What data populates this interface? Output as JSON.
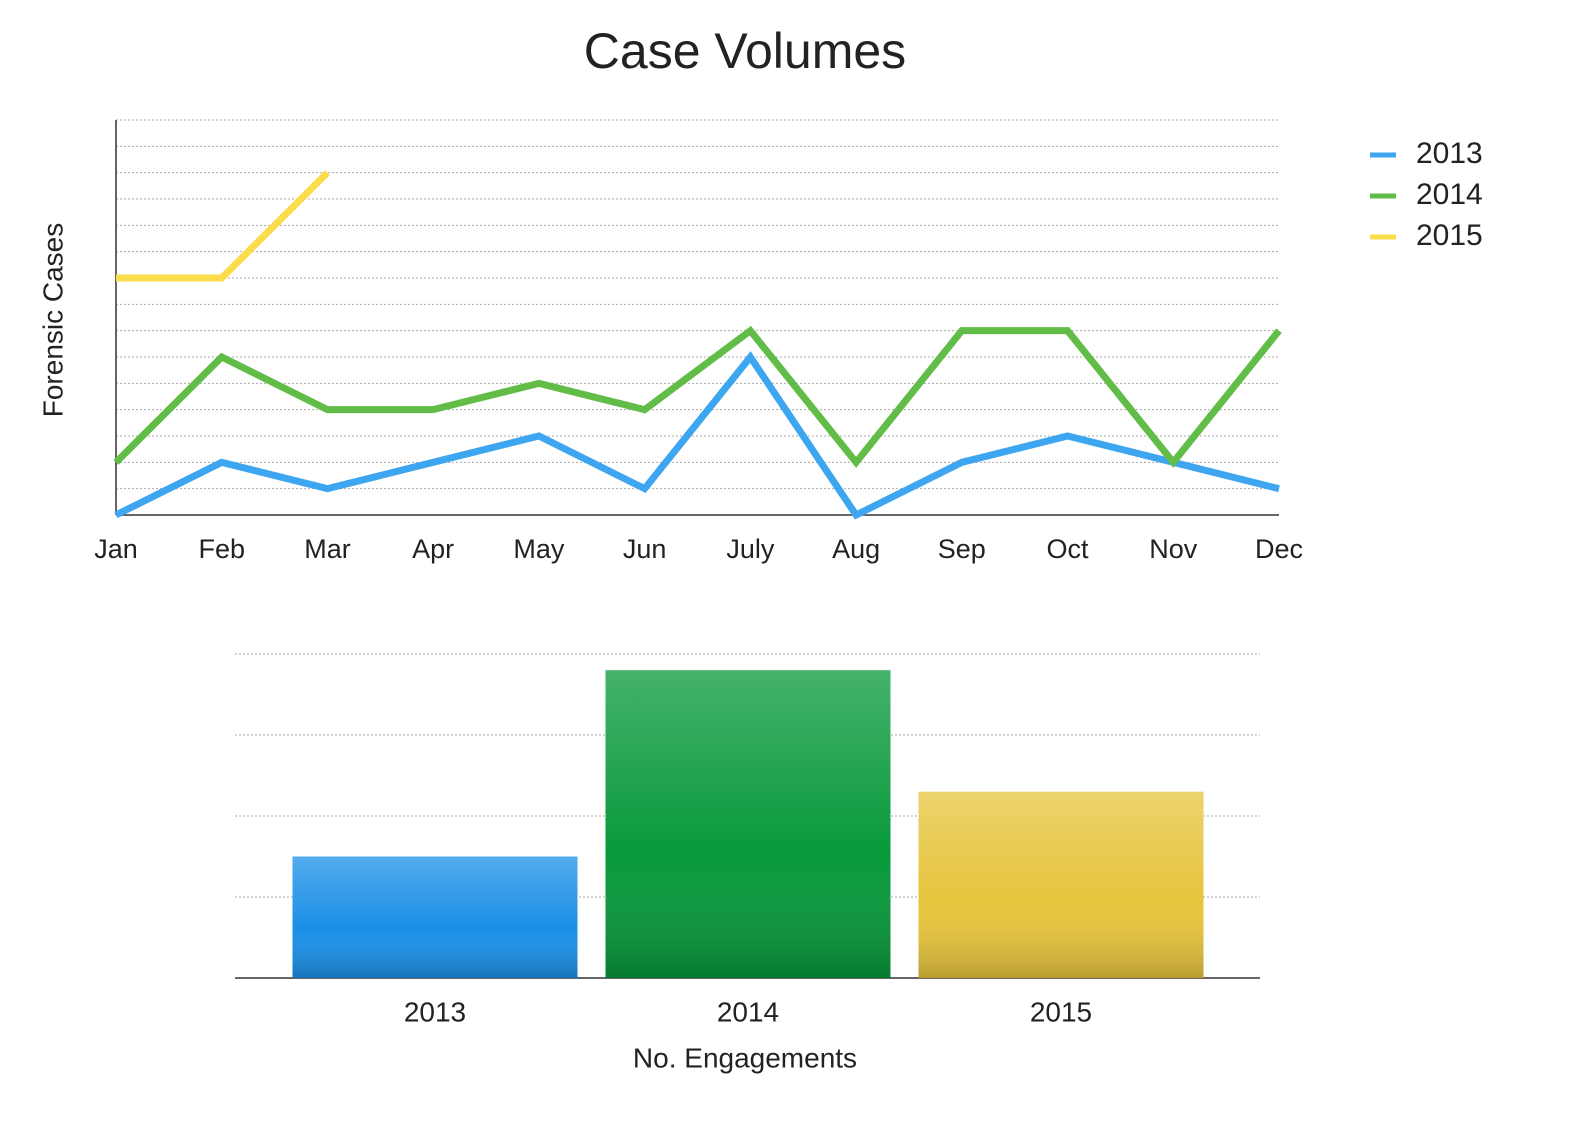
{
  "chart_data": [
    {
      "type": "line",
      "title": "Case Volumes",
      "y_label": "Forensic Cases",
      "categories": [
        "Jan",
        "Feb",
        "Mar",
        "Apr",
        "May",
        "Jun",
        "July",
        "Aug",
        "Sep",
        "Oct",
        "Nov",
        "Dec"
      ],
      "series": [
        {
          "name": "2013",
          "color": "#3ea6f0",
          "values": [
            0,
            2,
            1,
            2,
            3,
            1,
            6,
            0,
            2,
            3,
            2,
            1
          ]
        },
        {
          "name": "2014",
          "color": "#62bd48",
          "values": [
            2,
            6,
            4,
            4,
            5,
            4,
            7,
            2,
            7,
            7,
            2,
            7
          ]
        },
        {
          "name": "2015",
          "color": "#fbdc4b",
          "values": [
            9,
            9,
            13,
            null,
            null,
            null,
            null,
            null,
            null,
            null,
            null,
            null
          ]
        }
      ],
      "ylim": [
        0,
        15
      ],
      "yticks": [
        0,
        1,
        2,
        3,
        4,
        5,
        6,
        7,
        8,
        9,
        10,
        11,
        12,
        13,
        14,
        15
      ],
      "grid": true,
      "legend": "right"
    },
    {
      "type": "bar",
      "x_label": "No. Engagements",
      "categories": [
        "2013",
        "2014",
        "2015"
      ],
      "values": [
        1.5,
        3.8,
        2.3
      ],
      "colors": [
        "#1a8fe6",
        "#07993a",
        "#e6c43c"
      ],
      "ylim": [
        0,
        4
      ],
      "yticks": [
        0,
        1,
        2,
        3,
        4
      ],
      "grid": true
    }
  ]
}
